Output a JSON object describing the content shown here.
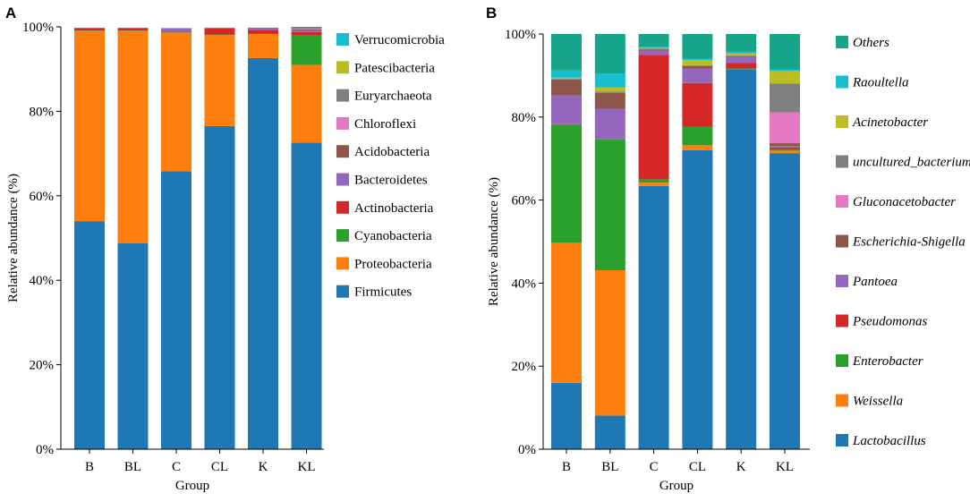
{
  "chart_data": [
    {
      "panel": "A",
      "type": "bar",
      "stacked": true,
      "xlabel": "Group",
      "ylabel": "Relative abundance (%)",
      "ylim": [
        0,
        100
      ],
      "yticks": [
        "0%",
        "20%",
        "40%",
        "60%",
        "80%",
        "100%"
      ],
      "categories": [
        "B",
        "BL",
        "C",
        "CL",
        "K",
        "KL"
      ],
      "legend_italic": false,
      "series": [
        {
          "name": "Firmicutes",
          "color": "#1f77b4",
          "values": [
            54.0,
            48.8,
            65.8,
            76.5,
            92.6,
            72.6
          ]
        },
        {
          "name": "Proteobacteria",
          "color": "#ff7f0e",
          "values": [
            45.0,
            50.2,
            32.8,
            21.6,
            5.7,
            18.4
          ]
        },
        {
          "name": "Cyanobacteria",
          "color": "#2ca02c",
          "values": [
            0.1,
            0.1,
            0.1,
            0.1,
            0.1,
            7.0
          ]
        },
        {
          "name": "Actinobacteria",
          "color": "#d62728",
          "values": [
            0.5,
            0.5,
            0.2,
            1.4,
            0.9,
            0.8
          ]
        },
        {
          "name": "Bacteroidetes",
          "color": "#9467bd",
          "values": [
            0.1,
            0.1,
            0.7,
            0.1,
            0.4,
            0.3
          ]
        },
        {
          "name": "Acidobacteria",
          "color": "#8c564b",
          "values": [
            0.1,
            0.1,
            0.1,
            0.1,
            0.1,
            0.3
          ]
        },
        {
          "name": "Chloroflexi",
          "color": "#e377c2",
          "values": [
            0.0,
            0.0,
            0.0,
            0.0,
            0.0,
            0.1
          ]
        },
        {
          "name": "Euryarchaeota",
          "color": "#7f7f7f",
          "values": [
            0.0,
            0.0,
            0.0,
            0.0,
            0.0,
            0.5
          ]
        },
        {
          "name": "Patescibacteria",
          "color": "#bcbd22",
          "values": [
            0.0,
            0.0,
            0.0,
            0.0,
            0.0,
            0.0
          ]
        },
        {
          "name": "Verrucomicrobia",
          "color": "#17becf",
          "values": [
            0.0,
            0.0,
            0.0,
            0.0,
            0.0,
            0.0
          ]
        }
      ]
    },
    {
      "panel": "B",
      "type": "bar",
      "stacked": true,
      "xlabel": "Group",
      "ylabel": "Relative abundance (%)",
      "ylim": [
        0,
        100
      ],
      "yticks": [
        "0%",
        "20%",
        "40%",
        "60%",
        "80%",
        "100%"
      ],
      "categories": [
        "B",
        "BL",
        "C",
        "CL",
        "K",
        "KL"
      ],
      "legend_italic": true,
      "series": [
        {
          "name": "Lactobacillus",
          "color": "#1f77b4",
          "values": [
            16.0,
            8.1,
            63.4,
            72.0,
            91.5,
            71.3
          ]
        },
        {
          "name": "Weissella",
          "color": "#ff7f0e",
          "values": [
            33.7,
            35.0,
            0.8,
            1.2,
            0.1,
            0.6
          ]
        },
        {
          "name": "Enterobacter",
          "color": "#2ca02c",
          "values": [
            28.5,
            31.5,
            0.8,
            4.5,
            0.1,
            0.4
          ]
        },
        {
          "name": "Pseudomonas",
          "color": "#d62728",
          "values": [
            0.1,
            0.1,
            30.0,
            10.5,
            1.3,
            0.4
          ]
        },
        {
          "name": "Pantoea",
          "color": "#9467bd",
          "values": [
            6.9,
            7.3,
            1.0,
            3.5,
            1.5,
            0.3
          ]
        },
        {
          "name": "Escherichia-Shigella",
          "color": "#8c564b",
          "values": [
            3.8,
            3.8,
            0.3,
            0.6,
            0.1,
            0.7
          ]
        },
        {
          "name": "Gluconacetobacter",
          "color": "#e377c2",
          "values": [
            0.0,
            0.0,
            0.0,
            0.0,
            0.0,
            7.4
          ]
        },
        {
          "name": "uncultured_bacterium",
          "color": "#7f7f7f",
          "values": [
            0.2,
            0.3,
            0.2,
            0.2,
            0.2,
            7.0
          ]
        },
        {
          "name": "Acinetobacter",
          "color": "#bcbd22",
          "values": [
            0.3,
            1.0,
            0.1,
            1.2,
            0.5,
            3.0
          ]
        },
        {
          "name": "Raoultella",
          "color": "#17becf",
          "values": [
            1.7,
            3.4,
            0.3,
            0.3,
            0.5,
            0.3
          ]
        },
        {
          "name": "Others",
          "color": "#17a589",
          "values": [
            8.8,
            9.5,
            3.1,
            6.0,
            4.2,
            8.6
          ]
        }
      ]
    }
  ]
}
